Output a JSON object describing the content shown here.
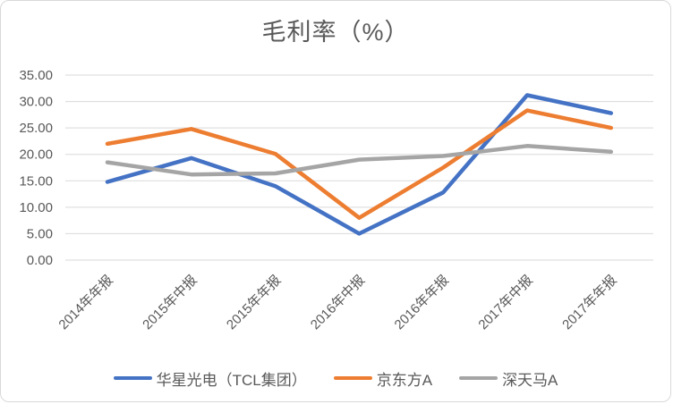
{
  "window": {
    "background": "#ffffff",
    "border_color": "#d9d9d9"
  },
  "chart_data": {
    "type": "line",
    "title": "毛利率（%）",
    "title_color": "#595959",
    "axis_text_color": "#595959",
    "grid_color": "#d9d9d9",
    "grid": "horizontal",
    "legend_position": "bottom",
    "x_label_rotation": -45,
    "ylim": [
      0,
      35
    ],
    "ytick_step": 5,
    "ytick_labels": [
      "0.00",
      "5.00",
      "10.00",
      "15.00",
      "20.00",
      "25.00",
      "30.00",
      "35.00"
    ],
    "categories": [
      "2014年年报",
      "2015年中报",
      "2015年年报",
      "2016年中报",
      "2016年年报",
      "2017年中报",
      "2017年年报"
    ],
    "series": [
      {
        "name": "华星光电（TCL集团）",
        "color": "#4472c4",
        "values": [
          14.8,
          19.3,
          14.0,
          5.0,
          12.8,
          31.2,
          27.8
        ]
      },
      {
        "name": "京东方A",
        "color": "#ed7d31",
        "values": [
          22.0,
          24.8,
          20.1,
          8.0,
          17.5,
          28.3,
          25.0
        ]
      },
      {
        "name": "深天马A",
        "color": "#a5a5a5",
        "values": [
          18.5,
          16.2,
          16.4,
          19.0,
          19.7,
          21.6,
          20.5
        ]
      }
    ]
  }
}
